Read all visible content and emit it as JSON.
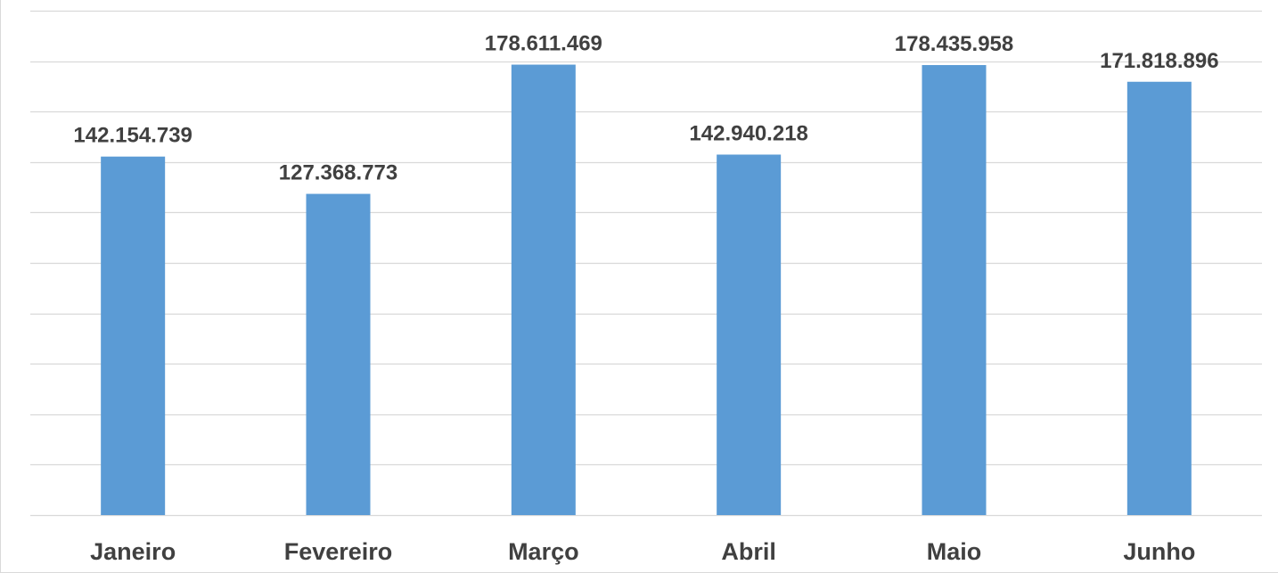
{
  "chart_data": {
    "type": "bar",
    "categories": [
      "Janeiro",
      "Fevereiro",
      "Março",
      "Abril",
      "Maio",
      "Junho"
    ],
    "values": [
      142154739,
      127368773,
      178611469,
      142940218,
      178435958,
      171818896
    ],
    "data_labels": [
      "142.154.739",
      "127.368.773",
      "178.611.469",
      "142.940.218",
      "178.435.958",
      "171.818.896"
    ],
    "ylim": [
      0,
      200000000
    ],
    "ytick_step": 20000000,
    "show_y_tick_labels": false,
    "grid": true,
    "legend": "none",
    "colors": {
      "bar": "#5b9bd5",
      "grid": "#d9d9d9",
      "text": "#404040"
    }
  }
}
